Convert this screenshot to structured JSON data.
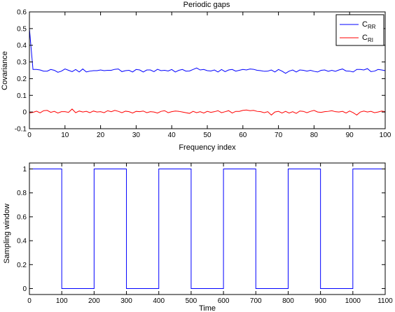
{
  "chart_data": [
    {
      "type": "line",
      "title": "Periodic gaps",
      "xlabel": "Frequency index",
      "ylabel": "Covariance",
      "xlim": [
        0,
        100
      ],
      "ylim": [
        -0.1,
        0.6
      ],
      "xticks": [
        0,
        10,
        20,
        30,
        40,
        50,
        60,
        70,
        80,
        90,
        100
      ],
      "yticks": [
        -0.1,
        0,
        0.1,
        0.2,
        0.3,
        0.4,
        0.5,
        0.6
      ],
      "xtick_labels": [
        "0",
        "10",
        "20",
        "30",
        "40",
        "50",
        "60",
        "70",
        "80",
        "90",
        "100"
      ],
      "ytick_labels": [
        "-0.1",
        "0",
        "0.1",
        "0.2",
        "0.3",
        "0.4",
        "0.5",
        "0.6"
      ],
      "grid": false,
      "legend": "top-right",
      "legend_entries": [
        {
          "main": "C",
          "sub": "RR",
          "color": "#0000ff"
        },
        {
          "main": "C",
          "sub": "RI",
          "color": "#ff0000"
        }
      ],
      "series": [
        {
          "color": "#0000ff",
          "x": [
            0,
            1,
            2,
            3,
            4,
            5,
            6,
            7,
            8,
            9,
            10,
            11,
            12,
            13,
            14,
            15,
            16,
            17,
            18,
            19,
            20,
            21,
            22,
            23,
            24,
            25,
            26,
            27,
            28,
            29,
            30,
            31,
            32,
            33,
            34,
            35,
            36,
            37,
            38,
            39,
            40,
            41,
            42,
            43,
            44,
            45,
            46,
            47,
            48,
            49,
            50,
            51,
            52,
            53,
            54,
            55,
            56,
            57,
            58,
            59,
            60,
            61,
            62,
            63,
            64,
            65,
            66,
            67,
            68,
            69,
            70,
            71,
            72,
            73,
            74,
            75,
            76,
            77,
            78,
            79,
            80,
            81,
            82,
            83,
            84,
            85,
            86,
            87,
            88,
            89,
            90,
            91,
            92,
            93,
            94,
            95,
            96,
            97,
            98,
            99,
            100
          ],
          "values": [
            0.5,
            0.255,
            0.255,
            0.252,
            0.245,
            0.245,
            0.255,
            0.25,
            0.238,
            0.245,
            0.258,
            0.25,
            0.242,
            0.255,
            0.24,
            0.258,
            0.24,
            0.245,
            0.248,
            0.248,
            0.252,
            0.248,
            0.25,
            0.25,
            0.256,
            0.258,
            0.242,
            0.248,
            0.25,
            0.24,
            0.255,
            0.252,
            0.24,
            0.252,
            0.252,
            0.242,
            0.256,
            0.248,
            0.25,
            0.246,
            0.255,
            0.24,
            0.25,
            0.255,
            0.245,
            0.246,
            0.255,
            0.264,
            0.252,
            0.255,
            0.248,
            0.246,
            0.252,
            0.24,
            0.255,
            0.242,
            0.252,
            0.255,
            0.245,
            0.25,
            0.255,
            0.252,
            0.258,
            0.256,
            0.25,
            0.248,
            0.244,
            0.245,
            0.252,
            0.24,
            0.255,
            0.245,
            0.232,
            0.245,
            0.252,
            0.24,
            0.252,
            0.25,
            0.245,
            0.25,
            0.244,
            0.24,
            0.25,
            0.252,
            0.244,
            0.25,
            0.244,
            0.252,
            0.258,
            0.246,
            0.245,
            0.24,
            0.255,
            0.255,
            0.252,
            0.26,
            0.242,
            0.245,
            0.255,
            0.252,
            0.248
          ]
        },
        {
          "color": "#ff0000",
          "x": [
            0,
            1,
            2,
            3,
            4,
            5,
            6,
            7,
            8,
            9,
            10,
            11,
            12,
            13,
            14,
            15,
            16,
            17,
            18,
            19,
            20,
            21,
            22,
            23,
            24,
            25,
            26,
            27,
            28,
            29,
            30,
            31,
            32,
            33,
            34,
            35,
            36,
            37,
            38,
            39,
            40,
            41,
            42,
            43,
            44,
            45,
            46,
            47,
            48,
            49,
            50,
            51,
            52,
            53,
            54,
            55,
            56,
            57,
            58,
            59,
            60,
            61,
            62,
            63,
            64,
            65,
            66,
            67,
            68,
            69,
            70,
            71,
            72,
            73,
            74,
            75,
            76,
            77,
            78,
            79,
            80,
            81,
            82,
            83,
            84,
            85,
            86,
            87,
            88,
            89,
            90,
            91,
            92,
            93,
            94,
            95,
            96,
            97,
            98,
            99,
            100
          ],
          "values": [
            -0.005,
            -0.002,
            0.005,
            -0.005,
            0.008,
            0.01,
            -0.002,
            0.004,
            -0.006,
            0.002,
            0.002,
            -0.002,
            0.018,
            -0.004,
            0.006,
            0.0,
            0.004,
            -0.004,
            0.006,
            0.0,
            0.002,
            -0.004,
            0.008,
            0.002,
            0.01,
            0.004,
            -0.004,
            0.005,
            0.002,
            -0.006,
            0.004,
            0.002,
            0.006,
            -0.004,
            0.002,
            0.0,
            -0.006,
            0.004,
            0.008,
            -0.004,
            0.002,
            0.006,
            0.004,
            0.0,
            -0.004,
            -0.008,
            0.004,
            -0.004,
            0.002,
            -0.006,
            0.004,
            -0.002,
            0.002,
            0.008,
            -0.004,
            0.002,
            0.008,
            -0.006,
            0.004,
            0.004,
            0.01,
            0.012,
            0.008,
            0.01,
            0.004,
            0.002,
            -0.004,
            0.002,
            -0.018,
            0.0,
            0.004,
            -0.006,
            0.004,
            -0.006,
            0.002,
            -0.008,
            0.006,
            0.004,
            -0.004,
            0.004,
            0.01,
            0.0,
            -0.002,
            0.002,
            0.004,
            0.008,
            0.002,
            0.0,
            0.004,
            -0.006,
            0.006,
            -0.004,
            -0.018,
            0.0,
            0.006,
            0.0,
            0.004,
            -0.004,
            0.0,
            0.006,
            0.002
          ]
        }
      ]
    },
    {
      "type": "line",
      "title": "",
      "xlabel": "Time",
      "ylabel": "Sampling window",
      "xlim": [
        0,
        1100
      ],
      "ylim": [
        -0.05,
        1.05
      ],
      "xticks": [
        0,
        100,
        200,
        300,
        400,
        500,
        600,
        700,
        800,
        900,
        1000,
        1100
      ],
      "yticks": [
        0,
        0.2,
        0.4,
        0.6,
        0.8,
        1
      ],
      "xtick_labels": [
        "0",
        "100",
        "200",
        "300",
        "400",
        "500",
        "600",
        "700",
        "800",
        "900",
        "1000",
        "1100"
      ],
      "ytick_labels": [
        "0",
        "0.2",
        "0.4",
        "0.6",
        "0.8",
        "1"
      ],
      "grid": false,
      "series": [
        {
          "color": "#0000ff",
          "x": [
            0,
            100,
            100,
            200,
            200,
            300,
            300,
            400,
            400,
            500,
            500,
            600,
            600,
            700,
            700,
            800,
            800,
            900,
            900,
            1000,
            1000,
            1100
          ],
          "values": [
            1,
            1,
            0,
            0,
            1,
            1,
            0,
            0,
            1,
            1,
            0,
            0,
            1,
            1,
            0,
            0,
            1,
            1,
            0,
            0,
            1,
            1
          ]
        }
      ]
    }
  ]
}
